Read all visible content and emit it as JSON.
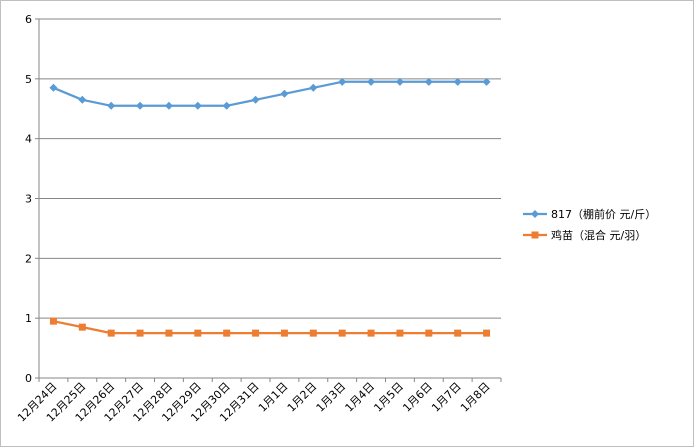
{
  "chart_data": {
    "type": "line",
    "title": "",
    "xlabel": "",
    "ylabel": "",
    "categories": [
      "12月24日",
      "12月25日",
      "12月26日",
      "12月27日",
      "12月28日",
      "12月29日",
      "12月30日",
      "12月31日",
      "1月1日",
      "1月2日",
      "1月3日",
      "1月4日",
      "1月5日",
      "1月6日",
      "1月7日",
      "1月8日"
    ],
    "ylim": [
      0,
      6
    ],
    "yticks": [
      "0",
      "1",
      "2",
      "3",
      "4",
      "5",
      "6"
    ],
    "grid": true,
    "legend_position": "right",
    "series": [
      {
        "name": "817（棚前价 元/斤）",
        "color": "#5B9BD5",
        "marker": "diamond",
        "values": [
          4.85,
          4.65,
          4.55,
          4.55,
          4.55,
          4.55,
          4.55,
          4.65,
          4.75,
          4.85,
          4.95,
          4.95,
          4.95,
          4.95,
          4.95,
          4.95
        ]
      },
      {
        "name": "鸡苗（混合 元/羽）",
        "color": "#ED7D31",
        "marker": "square",
        "values": [
          0.95,
          0.85,
          0.75,
          0.75,
          0.75,
          0.75,
          0.75,
          0.75,
          0.75,
          0.75,
          0.75,
          0.75,
          0.75,
          0.75,
          0.75,
          0.75
        ]
      }
    ]
  }
}
